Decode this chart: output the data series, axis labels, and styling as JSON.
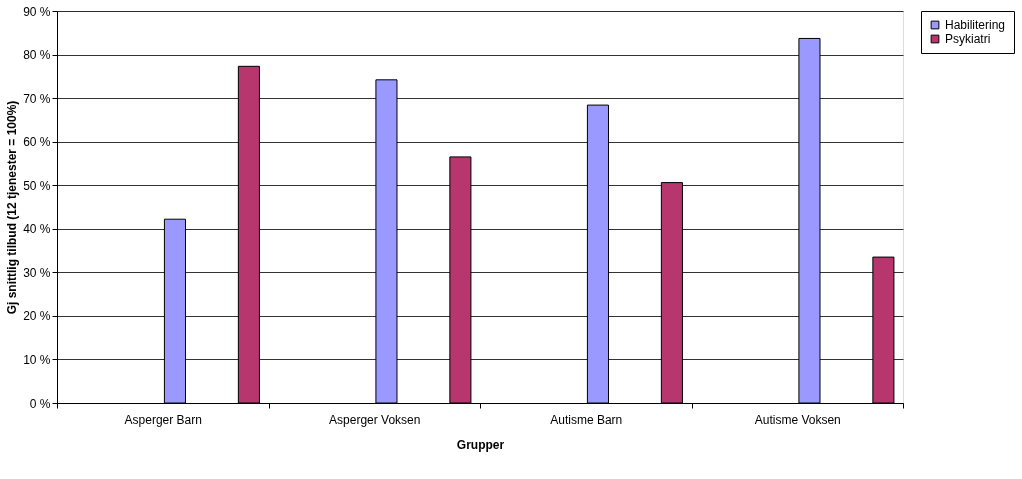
{
  "chart_data": {
    "type": "bar",
    "xlabel": "Grupper",
    "ylabel": "Gj snittlig tilbud (12 tjenester = 100%)",
    "categories": [
      "Asperger Barn",
      "Asperger Voksen",
      "Autisme Barn",
      "Autisme Voksen"
    ],
    "series": [
      {
        "name": "Habilitering",
        "color": "#9999ff",
        "values": [
          42.2,
          74.2,
          68.4,
          83.7
        ]
      },
      {
        "name": "Psykiatri",
        "color": "#b8366e",
        "values": [
          77.3,
          56.5,
          50.6,
          33.5
        ]
      }
    ],
    "ylim": [
      0,
      90
    ],
    "yticks": [
      {
        "value": 0,
        "label": "0 %"
      },
      {
        "value": 10,
        "label": "10 %"
      },
      {
        "value": 20,
        "label": "20 %"
      },
      {
        "value": 30,
        "label": "30 %"
      },
      {
        "value": 40,
        "label": "40 %"
      },
      {
        "value": 50,
        "label": "50 %"
      },
      {
        "value": 60,
        "label": "60 %"
      },
      {
        "value": 70,
        "label": "70 %"
      },
      {
        "value": 80,
        "label": "80 %"
      },
      {
        "value": 90,
        "label": "90 %"
      }
    ],
    "grid": "y",
    "legend": "right"
  }
}
